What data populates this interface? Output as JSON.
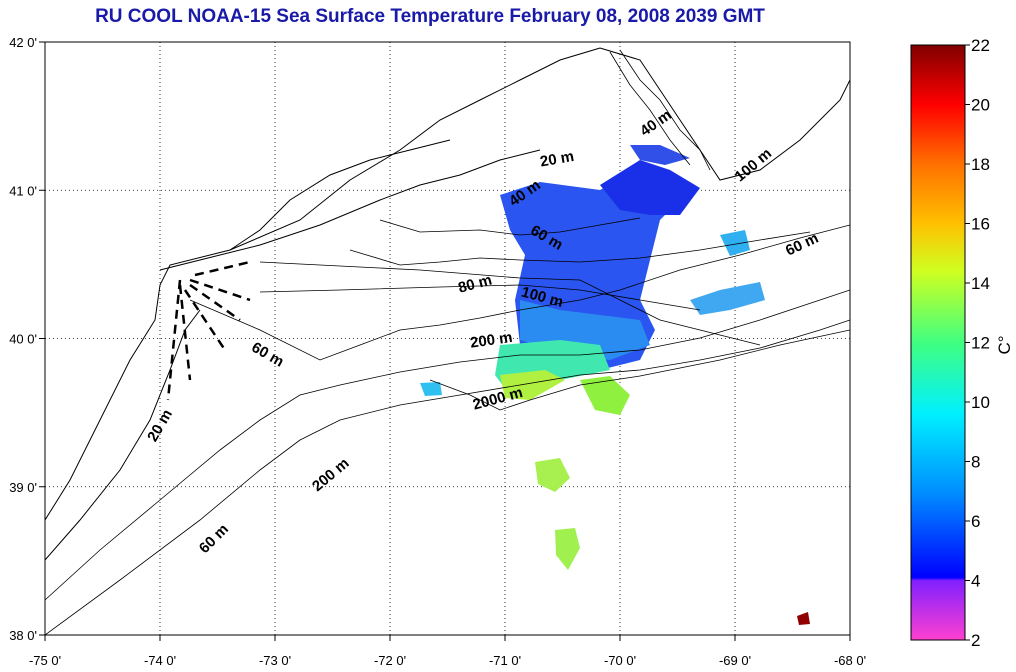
{
  "title": "RU COOL  NOAA-15 Sea Surface Temperature February 08, 2008 2039 GMT",
  "map": {
    "lon_range": [
      -75,
      -68
    ],
    "lat_range": [
      38,
      42
    ],
    "lon_ticks": [
      "-75 0'",
      "-74 0'",
      "-73 0'",
      "-72 0'",
      "-71 0'",
      "-70 0'",
      "-69 0'",
      "-68 0'"
    ],
    "lat_ticks": [
      "42 0'",
      "41 0'",
      "40 0'",
      "39 0'",
      "38 0'"
    ],
    "grid": "dotted",
    "contour_labels": [
      {
        "text": "40 m"
      },
      {
        "text": "20 m"
      },
      {
        "text": "40 m"
      },
      {
        "text": "100 m"
      },
      {
        "text": "60 m"
      },
      {
        "text": "60 m"
      },
      {
        "text": "80 m"
      },
      {
        "text": "100 m"
      },
      {
        "text": "200 m"
      },
      {
        "text": "60 m"
      },
      {
        "text": "2000 m"
      },
      {
        "text": "20 m"
      },
      {
        "text": "200 m"
      },
      {
        "text": "60 m"
      }
    ]
  },
  "colorbar": {
    "min": 2,
    "max": 22,
    "ticks": [
      "2",
      "4",
      "6",
      "8",
      "10",
      "12",
      "14",
      "16",
      "18",
      "20",
      "22"
    ],
    "unit_label": "C°",
    "colors": [
      "#ff40d0",
      "#8020ff",
      "#0000ff",
      "#0080ff",
      "#00e0ff",
      "#00ff90",
      "#a0ff40",
      "#ffe000",
      "#ff8000",
      "#ff1000",
      "#800000"
    ]
  }
}
